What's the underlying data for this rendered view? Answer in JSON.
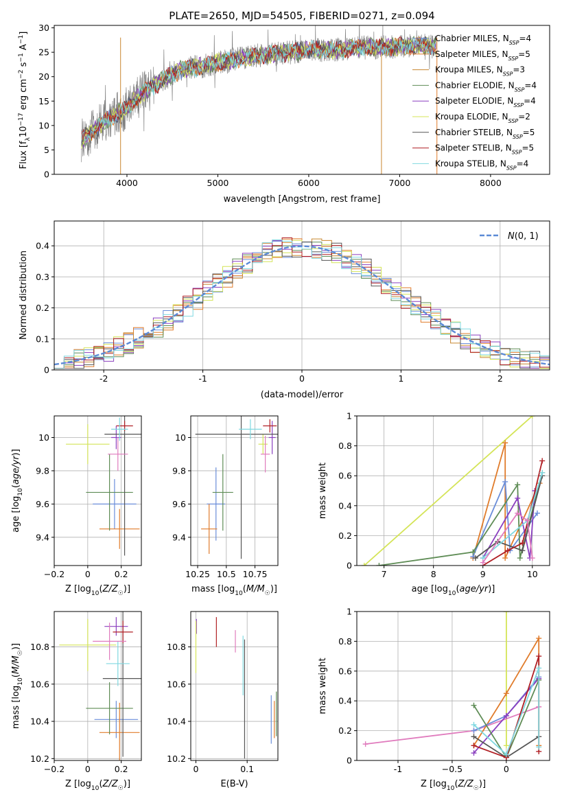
{
  "figure_title": "PLATE=2650, MJD=54505, FIBERID=0271, z=0.094",
  "colors": {
    "Chabrier MILES": "#6a8dd9",
    "Salpeter MILES": "#e07b2a",
    "Kroupa MILES": "#c8862f",
    "Chabrier ELODIE": "#5e8c55",
    "Salpeter ELODIE": "#8a3fbf",
    "Kroupa ELODIE": "#d4e457",
    "Chabrier STELIB": "#555555",
    "Salpeter STELIB": "#b01f24",
    "Kroupa STELIB": "#7fd8e0",
    "pink": "#e07bbd",
    "normal": "#5b8ad6"
  },
  "chart_data": [
    {
      "id": "spectrum",
      "type": "line",
      "xlabel": "wavelength [Angstrom, rest frame]",
      "ylabel": "Flux [f_λ 10^-17 erg cm^-2 s^-1 A^-1]",
      "xlim": [
        3200,
        8650
      ],
      "ylim": [
        0,
        30.5
      ],
      "xticks": [
        4000,
        5000,
        6000,
        7000,
        8000
      ],
      "yticks": [
        0,
        5,
        10,
        15,
        20,
        25,
        30
      ],
      "grid": false,
      "legend_position": "right",
      "continuum": {
        "x": [
          3500,
          3600,
          3700,
          3800,
          3900,
          4000,
          4100,
          4200,
          4300,
          4400,
          4500,
          4600,
          4800,
          5000,
          5200,
          5500,
          5800,
          6000,
          6300,
          6600,
          6900,
          7200,
          7400,
          7600
        ],
        "y": [
          7.0,
          8.5,
          10.0,
          11.5,
          12.5,
          13.5,
          15.5,
          17.0,
          18.0,
          19.5,
          20.5,
          21.5,
          22.0,
          23.0,
          23.5,
          24.5,
          25.0,
          25.5,
          25.5,
          26.0,
          26.0,
          26.5,
          26.0,
          25.5
        ]
      },
      "data_wavelength_range": [
        3500,
        7400
      ],
      "spikes_x": [
        3930,
        6800,
        7410
      ],
      "series": [
        {
          "name": "Chabrier MILES, N_SSP=4"
        },
        {
          "name": "Salpeter MILES, N_SSP=5"
        },
        {
          "name": "Kroupa MILES, N_SSP=3"
        },
        {
          "name": "Chabrier ELODIE, N_SSP=4"
        },
        {
          "name": "Salpeter ELODIE, N_SSP=4"
        },
        {
          "name": "Kroupa ELODIE, N_SSP=2"
        },
        {
          "name": "Chabrier STELIB, N_SSP=5"
        },
        {
          "name": "Salpeter STELIB, N_SSP=5"
        },
        {
          "name": "Kroupa STELIB, N_SSP=4"
        }
      ]
    },
    {
      "id": "residual-histogram",
      "type": "histogram",
      "xlabel": "(data-model)/error",
      "ylabel": "Normed distribution",
      "xlim": [
        -2.5,
        2.5
      ],
      "ylim": [
        0,
        0.48
      ],
      "xticks": [
        -2,
        -1,
        0,
        1,
        2
      ],
      "yticks": [
        0.0,
        0.1,
        0.2,
        0.3,
        0.4
      ],
      "grid": true,
      "legend": [
        "N(0,1)"
      ],
      "legend_position": "upper right",
      "bin_width": 0.1
    },
    {
      "id": "age-vs-Z",
      "type": "errorbar",
      "xlabel": "Z [log10(Z/Z☉)]",
      "ylabel": "age [log10(age/yr)]",
      "xlim": [
        -0.2,
        0.32
      ],
      "ylim": [
        9.23,
        10.13
      ],
      "xticks": [
        -0.2,
        0.0,
        0.2
      ],
      "yticks": [
        9.4,
        9.6,
        9.8,
        10.0
      ],
      "grid": true,
      "points": [
        {
          "c": "Chabrier MILES",
          "x": 0.16,
          "xerr": 0.13,
          "y": 9.6,
          "yerr": 0.15
        },
        {
          "c": "Salpeter MILES",
          "x": 0.19,
          "xerr": 0.12,
          "y": 9.45,
          "yerr": 0.12
        },
        {
          "c": "Chabrier ELODIE",
          "x": 0.13,
          "xerr": 0.14,
          "y": 9.67,
          "yerr": 0.23
        },
        {
          "c": "Salpeter ELODIE",
          "x": 0.17,
          "xerr": 0.03,
          "y": 10.0,
          "yerr": 0.07
        },
        {
          "c": "Kroupa ELODIE",
          "x": 0.0,
          "xerr": 0.13,
          "y": 9.96,
          "yerr": 0.12
        },
        {
          "c": "Chabrier STELIB",
          "x": 0.22,
          "xerr": 0.12,
          "y": 10.02,
          "yerr": 0.73
        },
        {
          "c": "Salpeter STELIB",
          "x": 0.22,
          "xerr": 0.05,
          "y": 10.07,
          "yerr": 0.03
        },
        {
          "c": "Kroupa STELIB",
          "x": 0.19,
          "xerr": 0.05,
          "y": 10.05,
          "yerr": 0.07
        },
        {
          "c": "pink",
          "x": 0.18,
          "xerr": 0.06,
          "y": 9.9,
          "yerr": 0.1
        }
      ]
    },
    {
      "id": "age-vs-mass",
      "type": "errorbar",
      "xlabel": "mass [log10(M/M☉)]",
      "ylabel": "",
      "xlim": [
        10.19,
        10.95
      ],
      "ylim": [
        9.23,
        10.13
      ],
      "xticks": [
        10.25,
        10.5,
        10.75
      ],
      "yticks": [
        9.4,
        9.6,
        9.8,
        10.0
      ],
      "grid": true,
      "points": [
        {
          "c": "Chabrier MILES",
          "x": 10.41,
          "xerr": 0.08,
          "y": 9.6,
          "yerr": 0.22
        },
        {
          "c": "Salpeter MILES",
          "x": 10.35,
          "xerr": 0.07,
          "y": 9.45,
          "yerr": 0.15
        },
        {
          "c": "Chabrier ELODIE",
          "x": 10.47,
          "xerr": 0.09,
          "y": 9.67,
          "yerr": 0.23
        },
        {
          "c": "Salpeter ELODIE",
          "x": 10.9,
          "xerr": 0.03,
          "y": 10.0,
          "yerr": 0.1
        },
        {
          "c": "Kroupa ELODIE",
          "x": 10.82,
          "xerr": 0.04,
          "y": 9.96,
          "yerr": 0.06
        },
        {
          "c": "Chabrier STELIB",
          "x": 10.63,
          "xerr": 0.4,
          "y": 10.02,
          "yerr": 0.75
        },
        {
          "c": "Salpeter STELIB",
          "x": 10.88,
          "xerr": 0.06,
          "y": 10.07,
          "yerr": 0.04
        },
        {
          "c": "Kroupa STELIB",
          "x": 10.71,
          "xerr": 0.1,
          "y": 10.05,
          "yerr": 0.06
        },
        {
          "c": "pink",
          "x": 10.84,
          "xerr": 0.04,
          "y": 9.9,
          "yerr": 0.11
        }
      ]
    },
    {
      "id": "mass-weight-vs-age",
      "type": "line",
      "xlabel": "age [log10(age/yr)]",
      "ylabel": "mass weight",
      "xlim": [
        6.45,
        10.35
      ],
      "ylim": [
        0,
        1.0
      ],
      "xticks": [
        7,
        8,
        9,
        10
      ],
      "yticks": [
        0.0,
        0.2,
        0.4,
        0.6,
        0.8,
        1.0
      ],
      "grid": true,
      "series": [
        {
          "c": "Kroupa ELODIE",
          "x": [
            6.6,
            10.0
          ],
          "y": [
            0.0,
            1.0
          ]
        },
        {
          "c": "Salpeter MILES",
          "x": [
            8.8,
            9.45,
            9.45,
            10.15
          ],
          "y": [
            0.05,
            0.82,
            0.05,
            0.55
          ]
        },
        {
          "c": "Chabrier MILES",
          "x": [
            8.8,
            9.45,
            9.55,
            10.1
          ],
          "y": [
            0.06,
            0.56,
            0.1,
            0.35
          ]
        },
        {
          "c": "Chabrier ELODIE",
          "x": [
            6.9,
            8.8,
            9.7,
            9.75,
            10.2
          ],
          "y": [
            0.0,
            0.09,
            0.54,
            0.05,
            0.62
          ]
        },
        {
          "c": "Salpeter ELODIE",
          "x": [
            9.0,
            9.7,
            9.95,
            10.05
          ],
          "y": [
            0.05,
            0.45,
            0.05,
            0.5
          ]
        },
        {
          "c": "Chabrier STELIB",
          "x": [
            8.85,
            9.3,
            9.8,
            10.2
          ],
          "y": [
            0.05,
            0.16,
            0.1,
            0.6
          ]
        },
        {
          "c": "Salpeter STELIB",
          "x": [
            9.0,
            9.5,
            9.8,
            10.2
          ],
          "y": [
            0.0,
            0.1,
            0.15,
            0.7
          ]
        },
        {
          "c": "Kroupa STELIB",
          "x": [
            9.0,
            9.9,
            10.2
          ],
          "y": [
            0.05,
            0.3,
            0.62
          ]
        },
        {
          "c": "pink",
          "x": [
            9.0,
            9.7,
            9.9,
            10.0
          ],
          "y": [
            0.02,
            0.35,
            0.3,
            0.05
          ]
        }
      ]
    },
    {
      "id": "mass-vs-Z",
      "type": "errorbar",
      "xlabel": "Z [log10(Z/Z☉)]",
      "ylabel": "mass [log10(M/M☉)]",
      "xlim": [
        -0.2,
        0.32
      ],
      "ylim": [
        10.19,
        10.99
      ],
      "xticks": [
        -0.2,
        0.0,
        0.2
      ],
      "yticks": [
        10.2,
        10.4,
        10.6,
        10.8
      ],
      "grid": true,
      "points": [
        {
          "c": "Chabrier MILES",
          "x": 0.17,
          "xerr": 0.13,
          "y": 10.41,
          "yerr": 0.1
        },
        {
          "c": "Salpeter MILES",
          "x": 0.19,
          "xerr": 0.12,
          "y": 10.34,
          "yerr": 0.16
        },
        {
          "c": "Chabrier ELODIE",
          "x": 0.13,
          "xerr": 0.14,
          "y": 10.47,
          "yerr": 0.14
        },
        {
          "c": "Salpeter ELODIE",
          "x": 0.17,
          "xerr": 0.07,
          "y": 10.91,
          "yerr": 0.05
        },
        {
          "c": "Kroupa ELODIE",
          "x": 0.0,
          "xerr": 0.17,
          "y": 10.81,
          "yerr": 0.14
        },
        {
          "c": "Chabrier STELIB",
          "x": 0.21,
          "xerr": 0.12,
          "y": 10.63,
          "yerr": 0.42
        },
        {
          "c": "Salpeter STELIB",
          "x": 0.21,
          "xerr": 0.06,
          "y": 10.88,
          "yerr": 0.06
        },
        {
          "c": "Kroupa STELIB",
          "x": 0.18,
          "xerr": 0.07,
          "y": 10.71,
          "yerr": 0.12
        },
        {
          "c": "pink",
          "x": 0.13,
          "xerr": 0.1,
          "y": 10.83,
          "yerr": 0.1
        }
      ]
    },
    {
      "id": "mass-vs-EBV",
      "type": "errorbar",
      "xlabel": "E(B-V)",
      "ylabel": "",
      "xlim": [
        -0.01,
        0.16
      ],
      "ylim": [
        10.19,
        10.99
      ],
      "xticks": [
        0.0,
        0.1
      ],
      "yticks": [
        10.2,
        10.4,
        10.6,
        10.8
      ],
      "grid": true,
      "points": [
        {
          "c": "Chabrier MILES",
          "x": 0.147,
          "xerr": 0,
          "y": 10.41,
          "yerr": 0.13
        },
        {
          "c": "Salpeter MILES",
          "x": 0.153,
          "xerr": 0,
          "y": 10.41,
          "yerr": 0.1
        },
        {
          "c": "Chabrier ELODIE",
          "x": 0.157,
          "xerr": 0,
          "y": 10.44,
          "yerr": 0.12
        },
        {
          "c": "Salpeter ELODIE",
          "x": 0.001,
          "xerr": 0,
          "y": 10.91,
          "yerr": 0.04
        },
        {
          "c": "Kroupa ELODIE",
          "x": 0.0,
          "xerr": 0,
          "y": 10.8,
          "yerr": 0.14
        },
        {
          "c": "Chabrier STELIB",
          "x": 0.095,
          "xerr": 0,
          "y": 10.52,
          "yerr": 0.32
        },
        {
          "c": "Salpeter STELIB",
          "x": 0.04,
          "xerr": 0,
          "y": 10.88,
          "yerr": 0.08
        },
        {
          "c": "Kroupa STELIB",
          "x": 0.092,
          "xerr": 0,
          "y": 10.7,
          "yerr": 0.16
        },
        {
          "c": "pink",
          "x": 0.077,
          "xerr": 0,
          "y": 10.83,
          "yerr": 0.06
        }
      ]
    },
    {
      "id": "mass-weight-vs-Z",
      "type": "line",
      "xlabel": "Z [log10(Z/Z☉)]",
      "ylabel": "mass weight",
      "xlim": [
        -1.38,
        0.4
      ],
      "ylim": [
        0,
        1.0
      ],
      "xticks": [
        -1.0,
        -0.5,
        0.0
      ],
      "yticks": [
        0.0,
        0.2,
        0.4,
        0.6,
        0.8,
        1.0
      ],
      "grid": true,
      "series": [
        {
          "c": "Kroupa ELODIE",
          "x": [
            0.0,
            0.0
          ],
          "y": [
            0.1,
            1.0
          ]
        },
        {
          "c": "pink",
          "x": [
            -1.3,
            -0.3,
            0.3
          ],
          "y": [
            0.11,
            0.2,
            0.36
          ]
        },
        {
          "c": "Salpeter MILES",
          "x": [
            -0.3,
            0.0,
            0.3,
            0.3
          ],
          "y": [
            0.1,
            0.45,
            0.82,
            0.1
          ]
        },
        {
          "c": "Chabrier MILES",
          "x": [
            -0.3,
            0.0,
            0.3
          ],
          "y": [
            0.2,
            0.3,
            0.56
          ]
        },
        {
          "c": "Salpeter ELODIE",
          "x": [
            -0.3,
            0.0,
            0.3
          ],
          "y": [
            0.05,
            0.3,
            0.55
          ]
        },
        {
          "c": "Chabrier ELODIE",
          "x": [
            -0.3,
            0.0,
            0.3
          ],
          "y": [
            0.37,
            0.02,
            0.54
          ]
        },
        {
          "c": "Chabrier STELIB",
          "x": [
            -0.3,
            0.0,
            0.3
          ],
          "y": [
            0.16,
            0.02,
            0.16
          ]
        },
        {
          "c": "Salpeter STELIB",
          "x": [
            -0.3,
            0.0,
            0.3,
            0.3
          ],
          "y": [
            0.1,
            0.02,
            0.7,
            0.06
          ]
        },
        {
          "c": "Kroupa STELIB",
          "x": [
            -0.3,
            0.0,
            0.3,
            0.3
          ],
          "y": [
            0.24,
            0.04,
            0.62,
            0.09
          ]
        }
      ]
    }
  ]
}
